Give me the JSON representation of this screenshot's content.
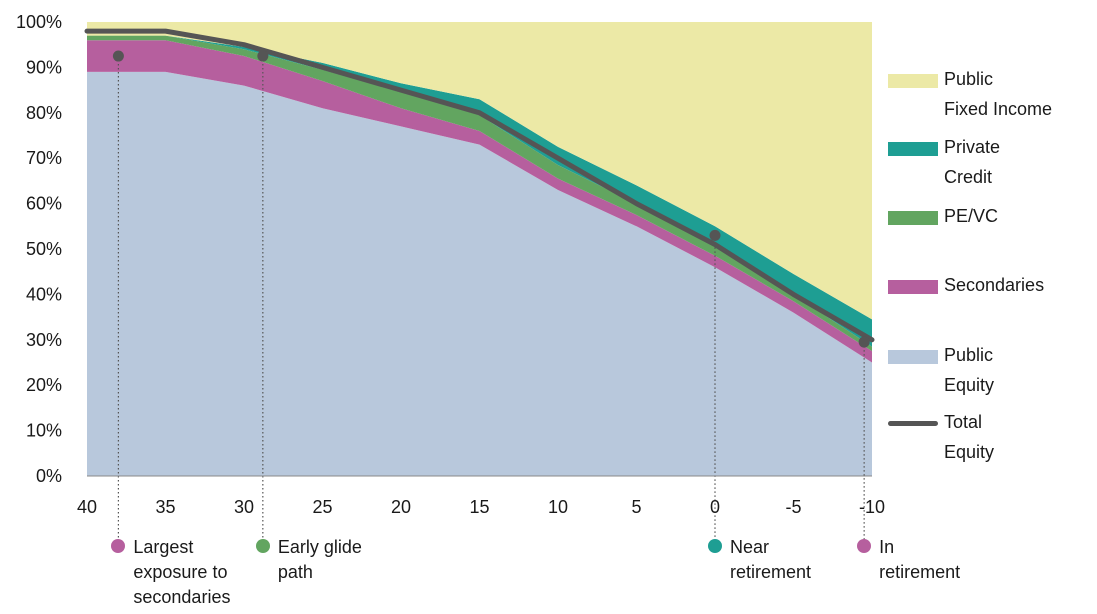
{
  "chart_data": {
    "type": "area",
    "x": [
      40,
      35,
      30,
      25,
      20,
      15,
      10,
      5,
      0,
      -5,
      -10
    ],
    "x_tick_labels": [
      "40",
      "35",
      "30",
      "25",
      "20",
      "15",
      "10",
      "5",
      "0",
      "-5",
      "-10"
    ],
    "y_tick_labels": [
      "0%",
      "10%",
      "20%",
      "30%",
      "40%",
      "50%",
      "60%",
      "70%",
      "80%",
      "90%",
      "100%"
    ],
    "ylim": [
      0,
      100
    ],
    "stack_order": [
      "Public Equity",
      "Secondaries",
      "PE/VC",
      "Private Credit",
      "Public Fixed Income"
    ],
    "series": [
      {
        "name": "Public Equity",
        "color": "#b8c8dc",
        "values": [
          89,
          89,
          86,
          81,
          77,
          73,
          63,
          55,
          46,
          36,
          25
        ]
      },
      {
        "name": "Secondaries",
        "color": "#b65f9e",
        "values": [
          7,
          7,
          6.5,
          6,
          4,
          3,
          2.5,
          2.5,
          2.5,
          2.5,
          2.5
        ]
      },
      {
        "name": "PE/VC",
        "color": "#62a560",
        "values": [
          1,
          1,
          1.5,
          2.5,
          3.5,
          3.5,
          3,
          2.5,
          2,
          1.5,
          1
        ]
      },
      {
        "name": "Private Credit",
        "color": "#1e9e93",
        "values": [
          0,
          0,
          0.5,
          1.5,
          2,
          3.5,
          4,
          4,
          4.5,
          4.5,
          6
        ]
      },
      {
        "name": "Public Fixed Income",
        "color": "#ece9a6",
        "values": [
          3,
          3,
          5.5,
          9,
          13.5,
          17,
          27.5,
          36,
          45,
          55.5,
          65.5
        ]
      }
    ],
    "total_equity": {
      "name": "Total Equity",
      "color": "#555555",
      "values": [
        98,
        98,
        95,
        90,
        85,
        80,
        70,
        60,
        51,
        40,
        30
      ]
    },
    "legend": [
      {
        "label": "Public\nFixed Income",
        "color": "#ece9a6",
        "kind": "area"
      },
      {
        "label": "Private\nCredit",
        "color": "#1e9e93",
        "kind": "area"
      },
      {
        "label": "PE/VC",
        "color": "#62a560",
        "kind": "area"
      },
      {
        "label": "Secondaries",
        "color": "#b65f9e",
        "kind": "area"
      },
      {
        "label": "Public\nEquity",
        "color": "#b8c8dc",
        "kind": "area"
      },
      {
        "label": "Total\nEquity",
        "color": "#555555",
        "kind": "line"
      }
    ],
    "legend_placement": "right",
    "grid": false,
    "annotations": [
      {
        "x": 38,
        "y": 92.5,
        "label": "Largest\nexposure to\nsecondaries",
        "dot_color": "#b65f9e"
      },
      {
        "x": 28.8,
        "y": 92.5,
        "label": "Early glide\npath",
        "dot_color": "#62a560"
      },
      {
        "x": 0,
        "y": 53,
        "label": "Near\nretirement",
        "dot_color": "#1e9e93"
      },
      {
        "x": -9.5,
        "y": 29.5,
        "label": "In\nretirement",
        "dot_color": "#b65f9e"
      }
    ]
  }
}
